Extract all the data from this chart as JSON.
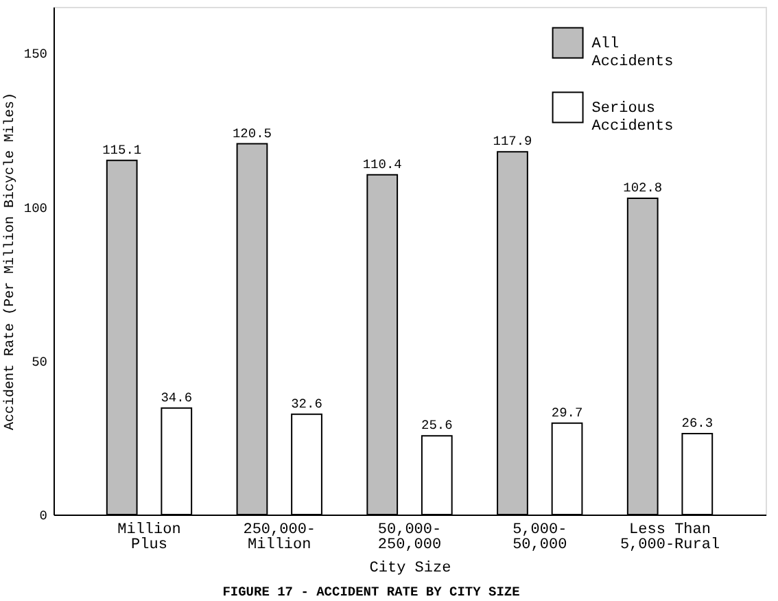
{
  "chart_data": {
    "type": "bar",
    "title": "FIGURE 17 - ACCIDENT RATE BY CITY SIZE",
    "xlabel": "City Size",
    "ylabel": "Accident Rate (Per Million Bicycle Miles)",
    "categories": [
      "Million\nPlus",
      "250,000-\nMillion",
      "50,000-\n250,000",
      "5,000-\n50,000",
      "Less Than\n5,000-Rural"
    ],
    "series": [
      {
        "name": "All Accidents",
        "color": "#bdbdbd",
        "values": [
          115.1,
          120.5,
          110.4,
          117.9,
          102.8
        ]
      },
      {
        "name": "Serious Accidents",
        "color": "#ffffff",
        "values": [
          34.6,
          32.6,
          25.6,
          29.7,
          26.3
        ]
      }
    ],
    "ylim": [
      0,
      165
    ],
    "yticks": [
      0,
      50,
      100,
      150
    ],
    "data_labels": true,
    "legend": "top right"
  }
}
